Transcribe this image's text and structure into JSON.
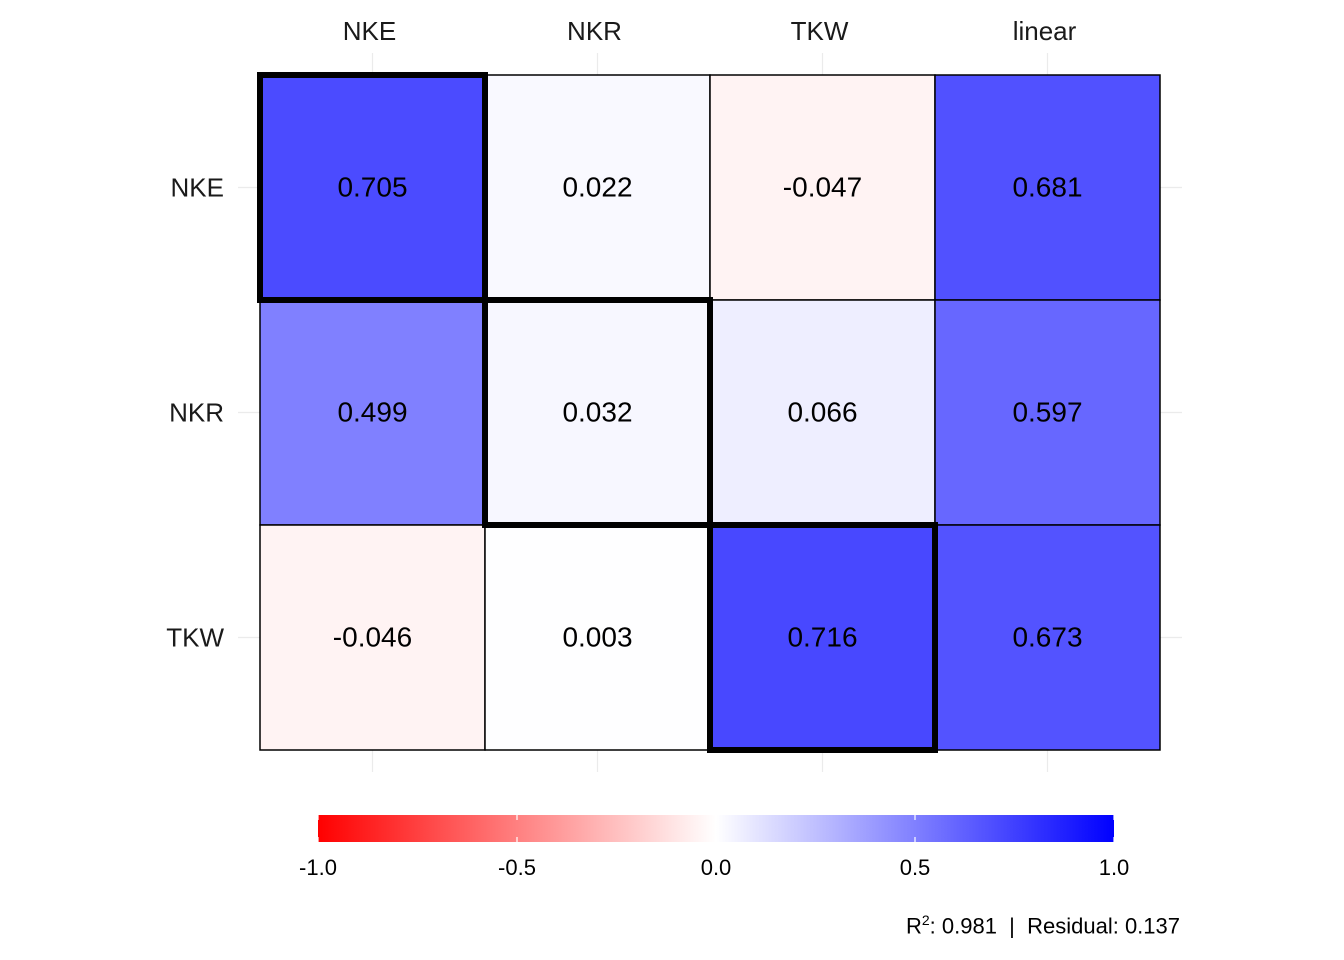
{
  "chart_data": {
    "type": "heatmap",
    "columns": [
      "NKE",
      "NKR",
      "TKW",
      "linear"
    ],
    "rows": [
      "NKE",
      "NKR",
      "TKW"
    ],
    "values": [
      [
        0.705,
        0.022,
        -0.047,
        0.681
      ],
      [
        0.499,
        0.032,
        0.066,
        0.597
      ],
      [
        -0.046,
        0.003,
        0.716,
        0.673
      ]
    ],
    "labels": [
      [
        "0.705",
        "0.022",
        "-0.047",
        "0.681"
      ],
      [
        "0.499",
        "0.032",
        "0.066",
        "0.597"
      ],
      [
        "-0.046",
        "0.003",
        "0.716",
        "0.673"
      ]
    ],
    "highlighted_cells": [
      [
        0,
        0
      ],
      [
        1,
        1
      ],
      [
        2,
        2
      ]
    ],
    "color_scale": {
      "min": -1.0,
      "mid": 0.0,
      "max": 1.0,
      "low_color": "#ff0000",
      "mid_color": "#ffffff",
      "high_color": "#0000ff",
      "ticks": [
        -1.0,
        -0.5,
        0.0,
        0.5,
        1.0
      ],
      "tick_labels": [
        "-1.0",
        "-0.5",
        "0.0",
        "0.5",
        "1.0"
      ]
    },
    "legend_position": "bottom",
    "grid": true
  },
  "footer": {
    "r2_label": "R",
    "r2_sup": "2",
    "r2_rest": ": 0.981  |  Residual: 0.137"
  }
}
